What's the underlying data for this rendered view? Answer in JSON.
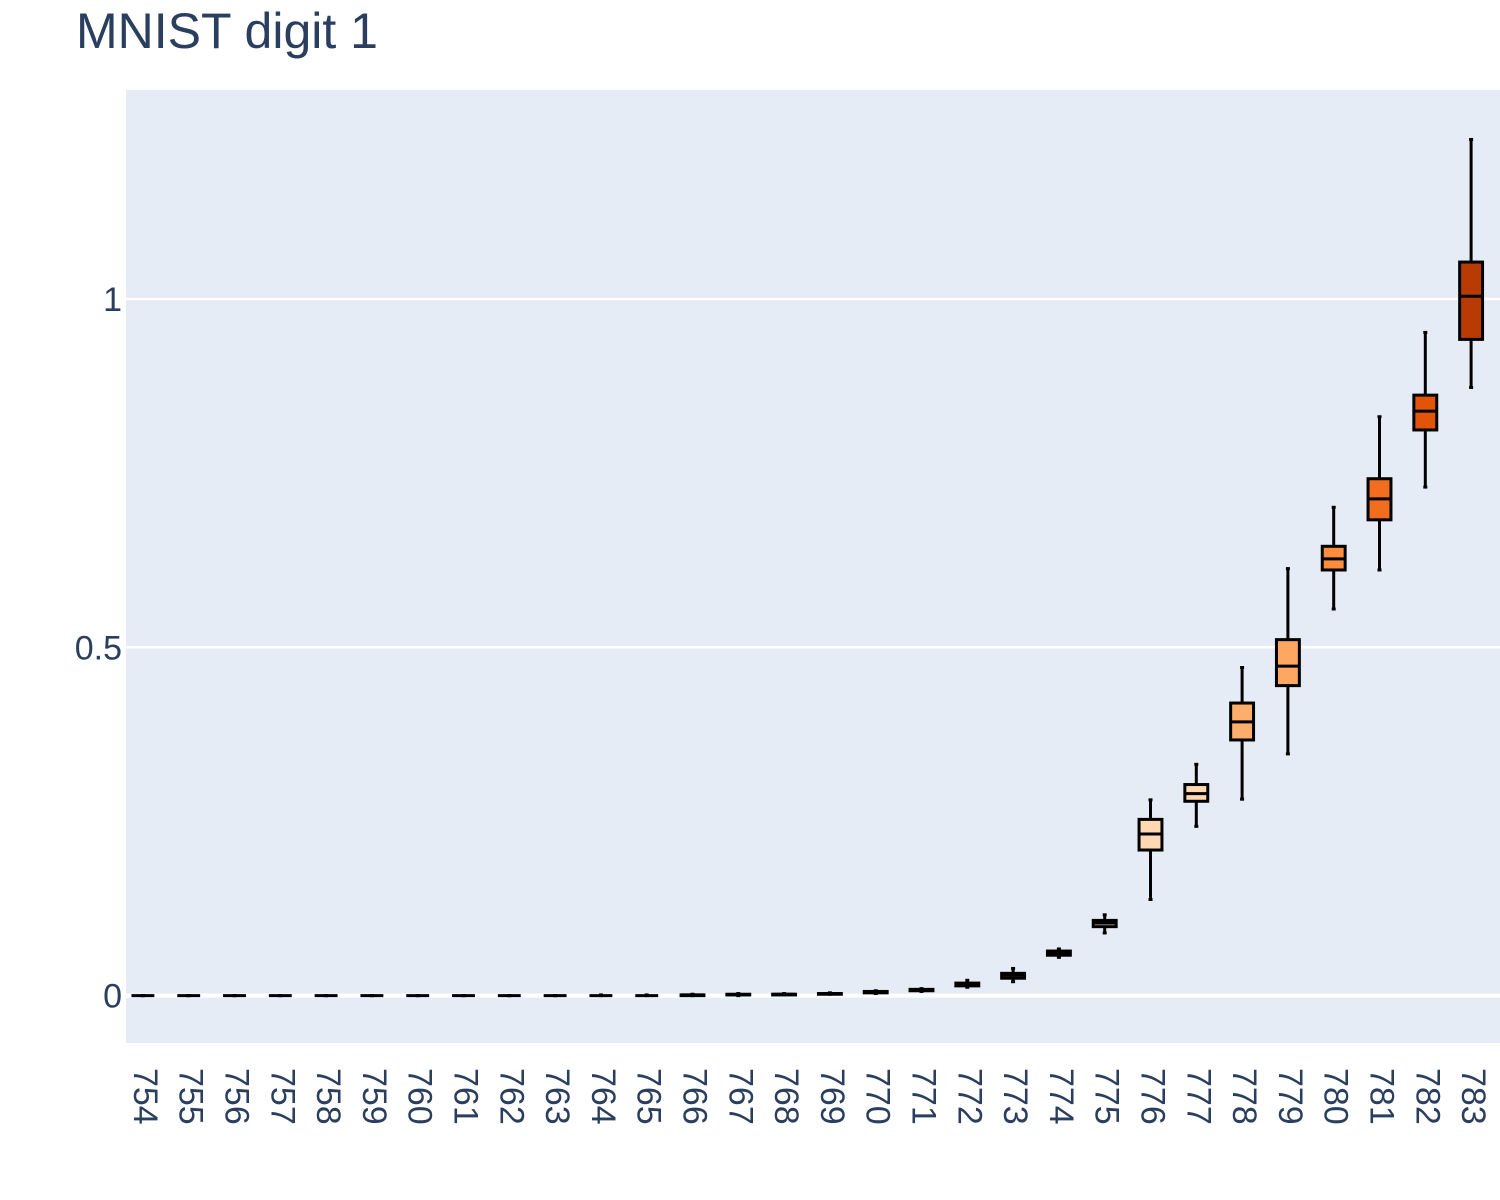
{
  "chart_data": {
    "type": "box",
    "title": "MNIST digit 1",
    "xlabel": "",
    "ylabel": "",
    "ylim": [
      -0.068,
      1.3
    ],
    "yticks": [
      0,
      0.5,
      1
    ],
    "ytick_labels": [
      "0",
      "0.5",
      "1"
    ],
    "grid": true,
    "legend": "none",
    "colors": {
      "plot_background": "#e5ecf6",
      "gridline": "#ffffff",
      "box_outline": "#000000",
      "text": "#2a3f5f"
    },
    "categories": [
      "754",
      "755",
      "756",
      "757",
      "758",
      "759",
      "760",
      "761",
      "762",
      "763",
      "764",
      "765",
      "766",
      "767",
      "768",
      "769",
      "770",
      "771",
      "772",
      "773",
      "774",
      "775",
      "776",
      "777",
      "778",
      "779",
      "780",
      "781",
      "782",
      "783"
    ],
    "boxes": [
      {
        "category": "754",
        "min": 0,
        "q1": 0,
        "median": 0,
        "q3": 0,
        "max": 0,
        "color": "#fff5eb"
      },
      {
        "category": "755",
        "min": 0,
        "q1": 0,
        "median": 0,
        "q3": 0,
        "max": 0,
        "color": "#fff5eb"
      },
      {
        "category": "756",
        "min": 0,
        "q1": 0,
        "median": 0,
        "q3": 0,
        "max": 0,
        "color": "#fff5eb"
      },
      {
        "category": "757",
        "min": 0,
        "q1": 0,
        "median": 0,
        "q3": 0,
        "max": 0,
        "color": "#fff5eb"
      },
      {
        "category": "758",
        "min": 0,
        "q1": 0,
        "median": 0,
        "q3": 0,
        "max": 0,
        "color": "#fff5eb"
      },
      {
        "category": "759",
        "min": 0,
        "q1": 0,
        "median": 0,
        "q3": 0,
        "max": 0,
        "color": "#fff5eb"
      },
      {
        "category": "760",
        "min": 0,
        "q1": 0,
        "median": 0,
        "q3": 0,
        "max": 0,
        "color": "#fff5eb"
      },
      {
        "category": "761",
        "min": 0,
        "q1": 0,
        "median": 0,
        "q3": 0,
        "max": 0,
        "color": "#fff5eb"
      },
      {
        "category": "762",
        "min": 0,
        "q1": 0,
        "median": 0,
        "q3": 0,
        "max": 0,
        "color": "#fff5eb"
      },
      {
        "category": "763",
        "min": 0,
        "q1": 0,
        "median": 0,
        "q3": 0,
        "max": 0,
        "color": "#fff5eb"
      },
      {
        "category": "764",
        "min": 0,
        "q1": 0,
        "median": 0,
        "q3": 0,
        "max": 0.001,
        "color": "#fff5eb"
      },
      {
        "category": "765",
        "min": 0,
        "q1": 0,
        "median": 0,
        "q3": 0,
        "max": 0.001,
        "color": "#fff5eb"
      },
      {
        "category": "766",
        "min": 0,
        "q1": 0,
        "median": 0.001,
        "q3": 0.001,
        "max": 0.002,
        "color": "#fff5eb"
      },
      {
        "category": "767",
        "min": 0,
        "q1": 0.001,
        "median": 0.001,
        "q3": 0.002,
        "max": 0.003,
        "color": "#fff5eb"
      },
      {
        "category": "768",
        "min": 0.001,
        "q1": 0.001,
        "median": 0.002,
        "q3": 0.002,
        "max": 0.003,
        "color": "#fff5eb"
      },
      {
        "category": "769",
        "min": 0.002,
        "q1": 0.002,
        "median": 0.003,
        "q3": 0.003,
        "max": 0.004,
        "color": "#fff5eb"
      },
      {
        "category": "770",
        "min": 0.003,
        "q1": 0.004,
        "median": 0.005,
        "q3": 0.006,
        "max": 0.007,
        "color": "#fff5eb"
      },
      {
        "category": "771",
        "min": 0.006,
        "q1": 0.007,
        "median": 0.008,
        "q3": 0.009,
        "max": 0.01,
        "color": "#fff5eb"
      },
      {
        "category": "772",
        "min": 0.012,
        "q1": 0.014,
        "median": 0.016,
        "q3": 0.018,
        "max": 0.022,
        "color": "#fff5eb"
      },
      {
        "category": "773",
        "min": 0.02,
        "q1": 0.025,
        "median": 0.029,
        "q3": 0.032,
        "max": 0.039,
        "color": "#fff5eb"
      },
      {
        "category": "774",
        "min": 0.055,
        "q1": 0.058,
        "median": 0.061,
        "q3": 0.064,
        "max": 0.067,
        "color": "#fff5eb"
      },
      {
        "category": "775",
        "min": 0.09,
        "q1": 0.099,
        "median": 0.104,
        "q3": 0.108,
        "max": 0.116,
        "color": "#fff5eb"
      },
      {
        "category": "776",
        "min": 0.138,
        "q1": 0.209,
        "median": 0.232,
        "q3": 0.253,
        "max": 0.281,
        "color": "#fdd8b3"
      },
      {
        "category": "777",
        "min": 0.243,
        "q1": 0.279,
        "median": 0.29,
        "q3": 0.303,
        "max": 0.332,
        "color": "#fdd8b3"
      },
      {
        "category": "778",
        "min": 0.282,
        "q1": 0.367,
        "median": 0.393,
        "q3": 0.42,
        "max": 0.471,
        "color": "#fdae6b"
      },
      {
        "category": "779",
        "min": 0.347,
        "q1": 0.445,
        "median": 0.473,
        "q3": 0.511,
        "max": 0.613,
        "color": "#fda762"
      },
      {
        "category": "780",
        "min": 0.555,
        "q1": 0.611,
        "median": 0.627,
        "q3": 0.645,
        "max": 0.701,
        "color": "#fd8d3c"
      },
      {
        "category": "781",
        "min": 0.611,
        "q1": 0.683,
        "median": 0.713,
        "q3": 0.742,
        "max": 0.831,
        "color": "#f36d1e"
      },
      {
        "category": "782",
        "min": 0.73,
        "q1": 0.812,
        "median": 0.839,
        "q3": 0.862,
        "max": 0.952,
        "color": "#e25508"
      },
      {
        "category": "783",
        "min": 0.873,
        "q1": 0.942,
        "median": 1.004,
        "q3": 1.053,
        "max": 1.229,
        "color": "#b93b03"
      }
    ]
  }
}
